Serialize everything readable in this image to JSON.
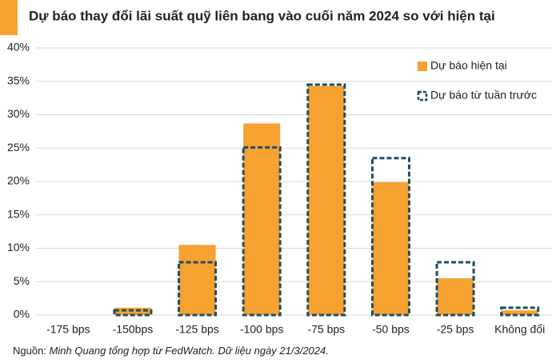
{
  "chart_data": {
    "type": "bar",
    "title": "Dự báo thay đổi lãi suất quỹ liên bang vào cuối năm 2024 so với hiện tại",
    "categories": [
      "-175 bps",
      "-150bps",
      "-125 bps",
      "-100 bps",
      "-75 bps",
      "-50 bps",
      "-25 bps",
      "Không đổi"
    ],
    "series": [
      {
        "name": "Dự báo hiện tại",
        "color": "#f6a230",
        "style": "filled",
        "values": [
          0,
          1.1,
          10.5,
          28.7,
          34.3,
          19.9,
          5.5,
          0.7
        ]
      },
      {
        "name": "Dự báo từ tuần trước",
        "color": "#1d4e63",
        "style": "dashed",
        "values": [
          0,
          0.7,
          7.9,
          25.1,
          34.5,
          23.5,
          7.9,
          1.1
        ]
      }
    ],
    "ylim": [
      0,
      40
    ],
    "yticks": [
      {
        "value": 0,
        "label": "0%"
      },
      {
        "value": 5,
        "label": "5%"
      },
      {
        "value": 10,
        "label": "10%"
      },
      {
        "value": 15,
        "label": "15%"
      },
      {
        "value": 20,
        "label": "20%"
      },
      {
        "value": 25,
        "label": "25%"
      },
      {
        "value": 30,
        "label": "30%"
      },
      {
        "value": 35,
        "label": "35%"
      },
      {
        "value": 40,
        "label": "40%"
      }
    ],
    "grid": true,
    "legend": "top-right",
    "source_label": "Nguồn:",
    "source_text": "Minh Quang tổng hợp từ FedWatch. Dữ liệu ngày 21/3/2024."
  }
}
